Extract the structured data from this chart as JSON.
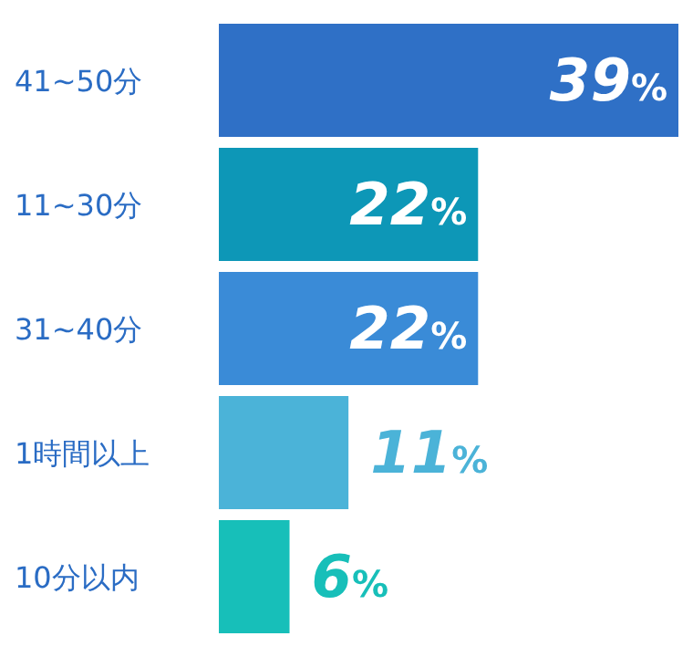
{
  "chart_data": {
    "type": "bar",
    "orientation": "horizontal",
    "categories": [
      "41~50分",
      "11~30分",
      "31~40分",
      "1時間以上",
      "10分以内"
    ],
    "values": [
      39,
      22,
      22,
      11,
      6
    ],
    "colors": [
      "#2f70c6",
      "#0d97b7",
      "#3a8bd7",
      "#4bb3d8",
      "#17bfb9"
    ],
    "value_labels": [
      "39%",
      "22%",
      "22%",
      "11%",
      "6%"
    ]
  }
}
